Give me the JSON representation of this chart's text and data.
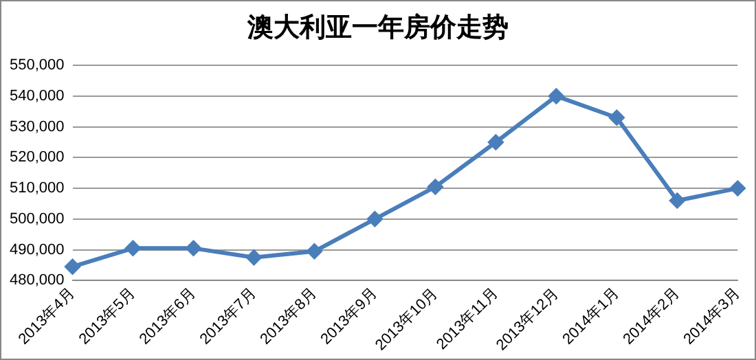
{
  "chart_data": {
    "type": "line",
    "title": "澳大利亚一年房价走势",
    "categories": [
      "2013年4月",
      "2013年5月",
      "2013年6月",
      "2013年7月",
      "2013年8月",
      "2013年9月",
      "2013年10月",
      "2013年11月",
      "2013年12月",
      "2014年1月",
      "2014年2月",
      "2014年3月"
    ],
    "series": [
      {
        "color": "#4a7ebb",
        "values": [
          484500,
          490500,
          490500,
          487500,
          489500,
          500000,
          510500,
          525000,
          540000,
          533000,
          506000,
          510000
        ]
      }
    ],
    "ylim": [
      480000,
      550000
    ],
    "yticks": [
      {
        "value": 480000,
        "label": "480,000"
      },
      {
        "value": 490000,
        "label": "490,000"
      },
      {
        "value": 500000,
        "label": "500,000"
      },
      {
        "value": 510000,
        "label": "510,000"
      },
      {
        "value": 520000,
        "label": "520,000"
      },
      {
        "value": 530000,
        "label": "530,000"
      },
      {
        "value": 540000,
        "label": "540,000"
      },
      {
        "value": 550000,
        "label": "550,000"
      }
    ],
    "grid": "y",
    "legend": false,
    "marker": "diamond",
    "line_style": "solid"
  }
}
